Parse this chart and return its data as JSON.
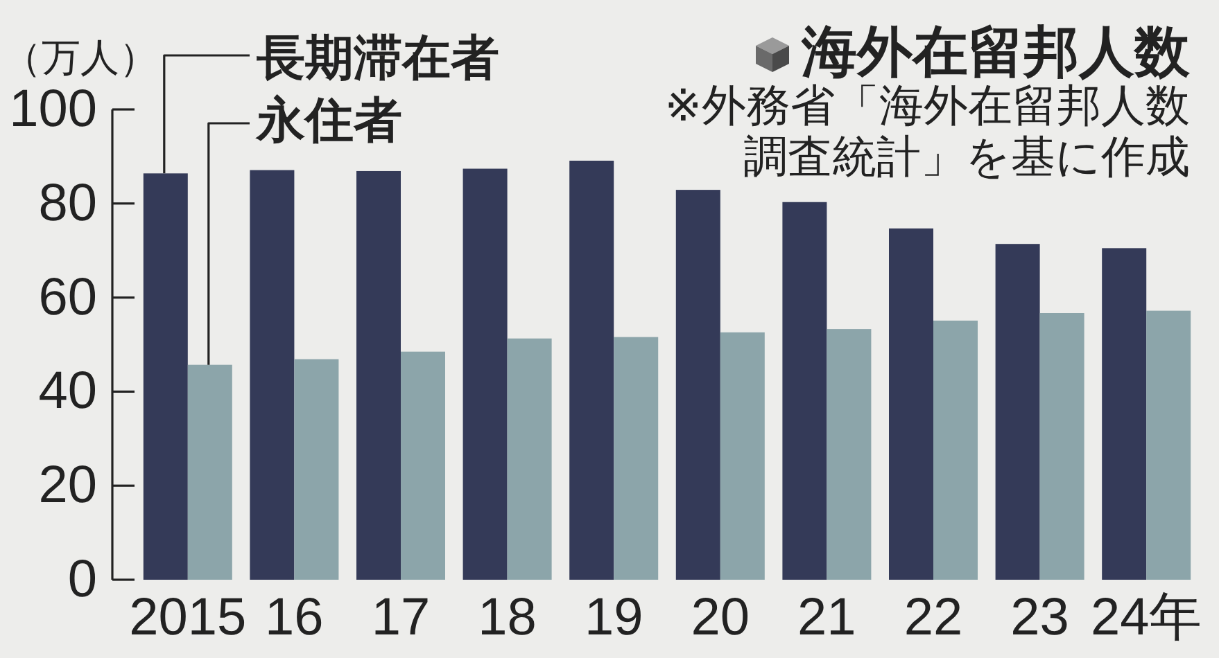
{
  "chart_data": {
    "type": "bar",
    "title": "海外在留邦人数",
    "ylabel": "（万人）",
    "annotations": [
      "※外務省「海外在留邦人数調査統計」を基に作成"
    ],
    "categories": [
      "2015",
      "16",
      "17",
      "18",
      "19",
      "20",
      "21",
      "22",
      "23",
      "24年"
    ],
    "series": [
      {
        "name": "長期滞在者",
        "color": "#343a58",
        "values": [
          86.4,
          87.1,
          86.9,
          87.4,
          89.1,
          82.9,
          80.3,
          74.7,
          71.4,
          70.5
        ]
      },
      {
        "name": "永住者",
        "color": "#8ca5aa",
        "values": [
          45.7,
          46.9,
          48.5,
          51.3,
          51.6,
          52.6,
          53.3,
          55.1,
          56.7,
          57.2
        ]
      }
    ],
    "ylim": [
      0,
      100
    ],
    "yticks": [
      0,
      20,
      40,
      60,
      80,
      100
    ],
    "legend": "top left"
  }
}
